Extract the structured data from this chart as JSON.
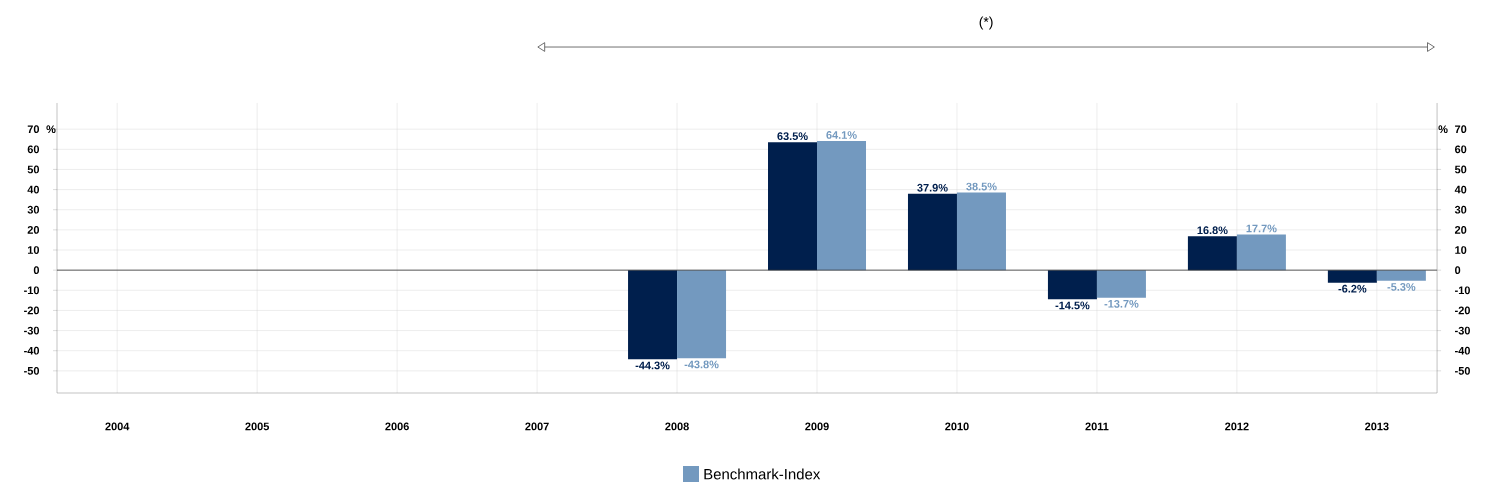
{
  "chart_data": {
    "type": "bar",
    "title": "(*)",
    "categories": [
      "2004",
      "2005",
      "2006",
      "2007",
      "2008",
      "2009",
      "2010",
      "2011",
      "2012",
      "2013"
    ],
    "series": [
      {
        "color": "#001f4d",
        "values": [
          null,
          null,
          null,
          null,
          -44.3,
          63.5,
          37.9,
          -14.5,
          16.8,
          -6.2
        ],
        "value_labels": [
          null,
          null,
          null,
          null,
          "-44.3%",
          "63.5%",
          "37.9%",
          "-14.5%",
          "16.8%",
          "-6.2%"
        ]
      },
      {
        "name": "Benchmark-Index",
        "color": "#7399bf",
        "values": [
          null,
          null,
          null,
          null,
          -43.8,
          64.1,
          38.5,
          -13.7,
          17.7,
          -5.3
        ],
        "value_labels": [
          null,
          null,
          null,
          null,
          "-43.8%",
          "64.1%",
          "38.5%",
          "-13.7%",
          "17.7%",
          "-5.3%"
        ]
      }
    ],
    "ylim": [
      -61,
      83
    ],
    "yticks": [
      -50,
      -40,
      -30,
      -20,
      -10,
      0,
      10,
      20,
      30,
      40,
      50,
      60,
      70
    ],
    "y2lim": [
      -61,
      83
    ],
    "y2ticks": [
      -50,
      -40,
      -30,
      -20,
      -10,
      0,
      10,
      20,
      30,
      40,
      50,
      60,
      70
    ],
    "ylabel": "%",
    "y2label": "%",
    "grid": true,
    "legend": "bottom",
    "ref_lines": [
      {
        "axis": "y",
        "value": 0,
        "color": "#333333"
      }
    ]
  }
}
